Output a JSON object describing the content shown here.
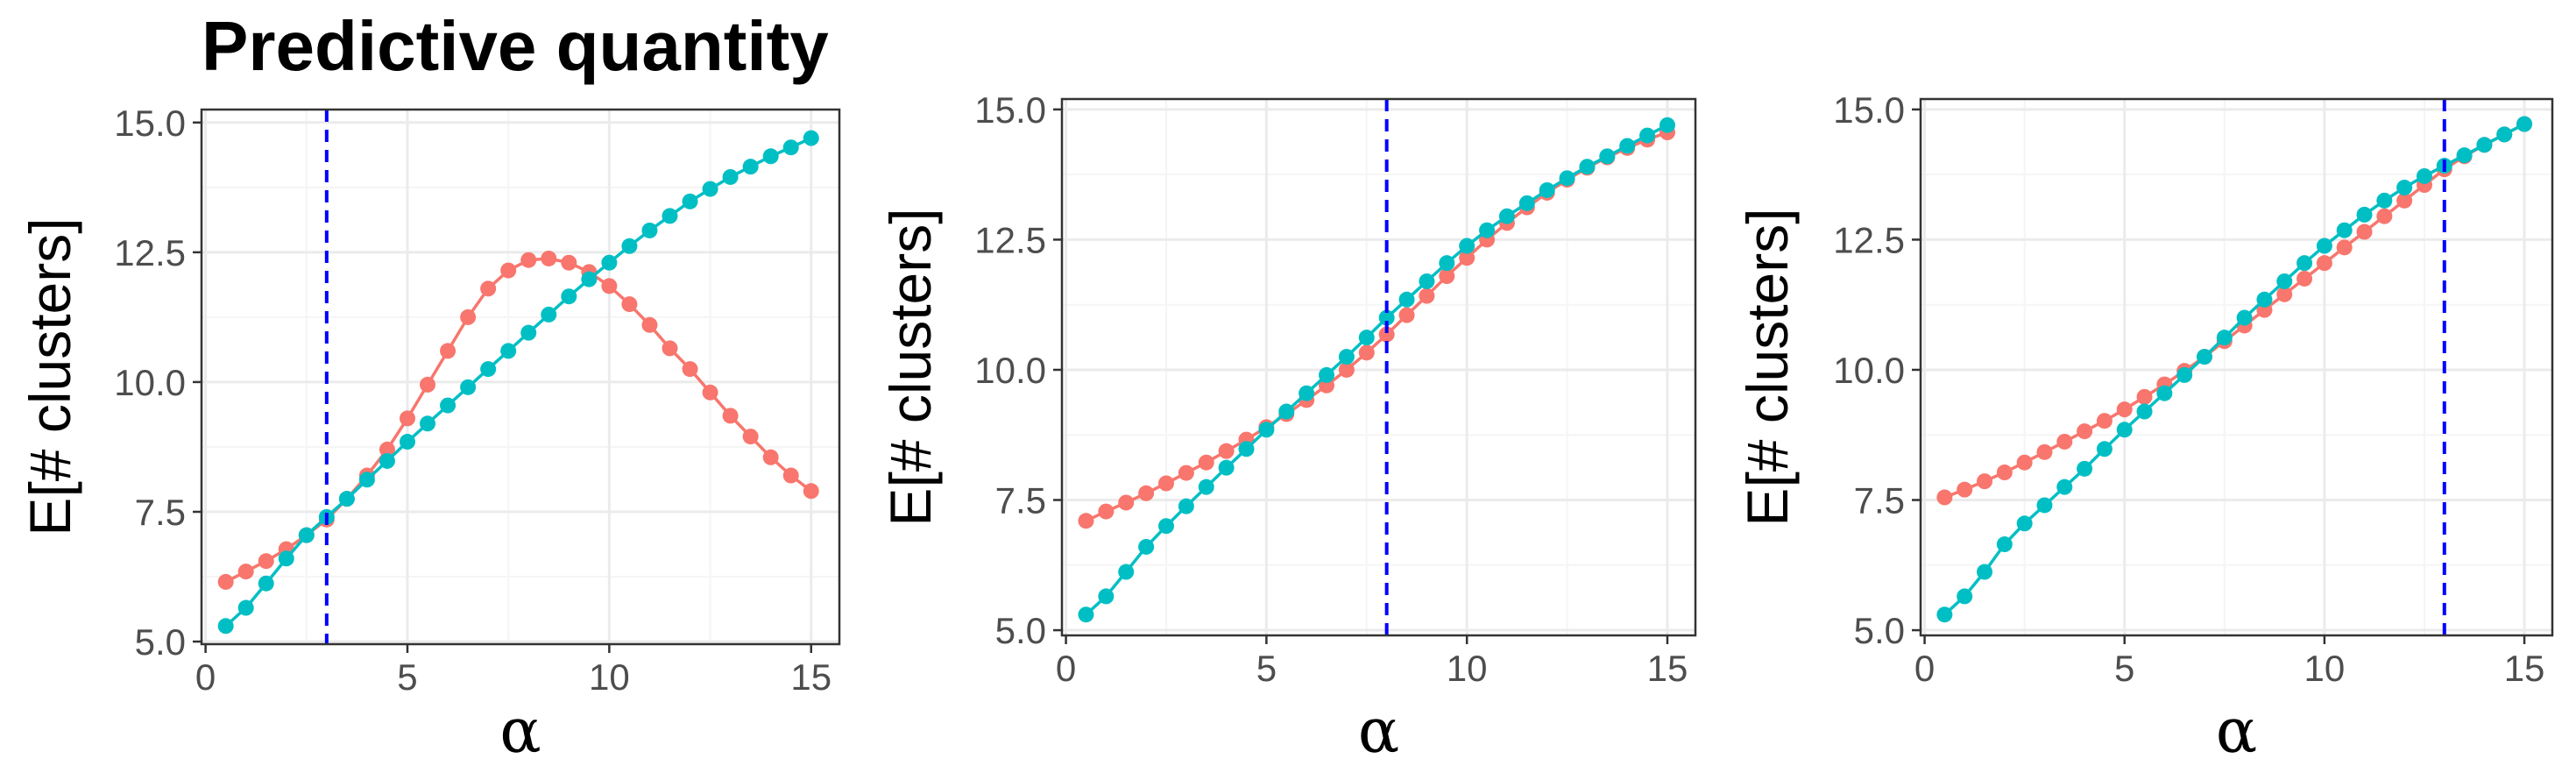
{
  "figure_title": "Predictive quantity",
  "colors": {
    "series_red": "#F8766D",
    "series_teal": "#00BFC4",
    "vline": "#0000FF",
    "grid_major": "#EBEBEB",
    "grid_minor": "#F5F5F5",
    "panel_border": "#333333",
    "tick_text": "#4D4D4D"
  },
  "chart_data": [
    {
      "type": "line",
      "title": "Predictive quantity",
      "xlabel": "α",
      "ylabel": "E[# clusters]",
      "xlim": [
        -0.1,
        15.7
      ],
      "ylim": [
        4.95,
        15.25
      ],
      "xticks": [
        0,
        5,
        10,
        15
      ],
      "yticks": [
        5.0,
        7.5,
        10.0,
        12.5,
        15.0
      ],
      "xtick_labels": [
        "0",
        "5",
        "10",
        "15"
      ],
      "ytick_labels": [
        "5.0",
        "7.5",
        "10.0",
        "12.5",
        "15.0"
      ],
      "grid": true,
      "vline": 3,
      "x": [
        0.5,
        1,
        1.5,
        2,
        2.5,
        3,
        3.5,
        4,
        4.5,
        5,
        5.5,
        6,
        6.5,
        7,
        7.5,
        8,
        8.5,
        9,
        9.5,
        10,
        10.5,
        11,
        11.5,
        12,
        12.5,
        13,
        13.5,
        14,
        14.5,
        15
      ],
      "series": [
        {
          "color_key": "series_red",
          "values": [
            6.15,
            6.35,
            6.55,
            6.78,
            7.05,
            7.35,
            7.75,
            8.2,
            8.7,
            9.3,
            9.95,
            10.6,
            11.25,
            11.8,
            12.15,
            12.35,
            12.38,
            12.3,
            12.12,
            11.85,
            11.5,
            11.1,
            10.65,
            10.25,
            9.8,
            9.35,
            8.95,
            8.55,
            8.2,
            7.9
          ]
        },
        {
          "color_key": "series_teal",
          "values": [
            5.3,
            5.65,
            6.12,
            6.6,
            7.05,
            7.4,
            7.75,
            8.12,
            8.48,
            8.85,
            9.2,
            9.55,
            9.9,
            10.25,
            10.6,
            10.95,
            11.3,
            11.65,
            11.98,
            12.3,
            12.62,
            12.92,
            13.2,
            13.48,
            13.72,
            13.95,
            14.15,
            14.35,
            14.52,
            14.7
          ]
        }
      ]
    },
    {
      "type": "line",
      "title": "",
      "xlabel": "α",
      "ylabel": "E[# clusters]",
      "xlim": [
        -0.1,
        15.7
      ],
      "ylim": [
        4.9,
        15.2
      ],
      "xticks": [
        0,
        5,
        10,
        15
      ],
      "yticks": [
        5.0,
        7.5,
        10.0,
        12.5,
        15.0
      ],
      "xtick_labels": [
        "0",
        "5",
        "10",
        "15"
      ],
      "ytick_labels": [
        "5.0",
        "7.5",
        "10.0",
        "12.5",
        "15.0"
      ],
      "grid": true,
      "vline": 8,
      "x": [
        0.5,
        1,
        1.5,
        2,
        2.5,
        3,
        3.5,
        4,
        4.5,
        5,
        5.5,
        6,
        6.5,
        7,
        7.5,
        8,
        8.5,
        9,
        9.5,
        10,
        10.5,
        11,
        11.5,
        12,
        12.5,
        13,
        13.5,
        14,
        14.5,
        15
      ],
      "series": [
        {
          "color_key": "series_red",
          "values": [
            7.1,
            7.28,
            7.45,
            7.63,
            7.82,
            8.02,
            8.22,
            8.44,
            8.66,
            8.9,
            9.15,
            9.42,
            9.7,
            10.0,
            10.33,
            10.68,
            11.05,
            11.42,
            11.8,
            12.15,
            12.5,
            12.82,
            13.12,
            13.4,
            13.65,
            13.88,
            14.08,
            14.26,
            14.42,
            14.56
          ]
        },
        {
          "color_key": "series_teal",
          "values": [
            5.3,
            5.65,
            6.12,
            6.6,
            7.0,
            7.38,
            7.75,
            8.12,
            8.48,
            8.85,
            9.2,
            9.55,
            9.9,
            10.25,
            10.62,
            11.0,
            11.35,
            11.7,
            12.05,
            12.38,
            12.68,
            12.95,
            13.2,
            13.45,
            13.68,
            13.9,
            14.1,
            14.3,
            14.5,
            14.7
          ]
        }
      ]
    },
    {
      "type": "line",
      "title": "",
      "xlabel": "α",
      "ylabel": "E[# clusters]",
      "xlim": [
        -0.1,
        15.7
      ],
      "ylim": [
        4.9,
        15.2
      ],
      "xticks": [
        0,
        5,
        10,
        15
      ],
      "yticks": [
        5.0,
        7.5,
        10.0,
        12.5,
        15.0
      ],
      "xtick_labels": [
        "0",
        "5",
        "10",
        "15"
      ],
      "ytick_labels": [
        "5.0",
        "7.5",
        "10.0",
        "12.5",
        "15.0"
      ],
      "grid": true,
      "vline": 13,
      "x": [
        0.5,
        1,
        1.5,
        2,
        2.5,
        3,
        3.5,
        4,
        4.5,
        5,
        5.5,
        6,
        6.5,
        7,
        7.5,
        8,
        8.5,
        9,
        9.5,
        10,
        10.5,
        11,
        11.5,
        12,
        12.5,
        13,
        13.5,
        14,
        14.5,
        15
      ],
      "series": [
        {
          "color_key": "series_red",
          "values": [
            7.55,
            7.7,
            7.86,
            8.03,
            8.22,
            8.42,
            8.62,
            8.82,
            9.02,
            9.24,
            9.48,
            9.72,
            9.98,
            10.25,
            10.55,
            10.85,
            11.15,
            11.45,
            11.75,
            12.05,
            12.35,
            12.65,
            12.95,
            13.25,
            13.55,
            13.85,
            14.1,
            14.32,
            14.52,
            14.72
          ]
        },
        {
          "color_key": "series_teal",
          "values": [
            5.3,
            5.65,
            6.12,
            6.65,
            7.05,
            7.4,
            7.75,
            8.1,
            8.48,
            8.85,
            9.2,
            9.55,
            9.9,
            10.25,
            10.62,
            11.0,
            11.35,
            11.7,
            12.05,
            12.38,
            12.68,
            12.98,
            13.25,
            13.5,
            13.72,
            13.92,
            14.12,
            14.32,
            14.52,
            14.72
          ]
        }
      ]
    }
  ]
}
